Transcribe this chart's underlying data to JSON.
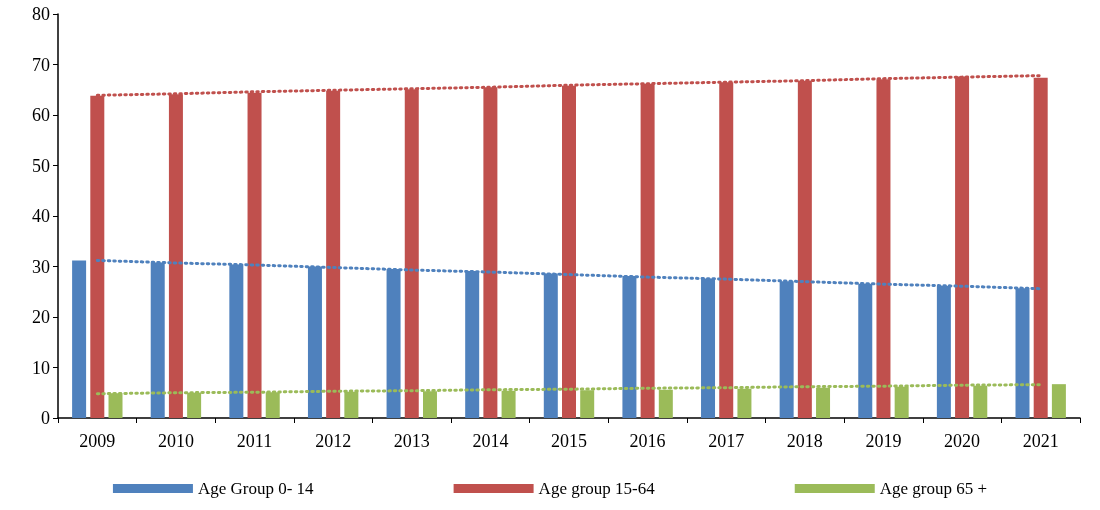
{
  "chart_data": {
    "type": "bar",
    "categories": [
      "2009",
      "2010",
      "2011",
      "2012",
      "2013",
      "2014",
      "2015",
      "2016",
      "2017",
      "2018",
      "2019",
      "2020",
      "2021"
    ],
    "series": [
      {
        "name": "Age Group 0- 14",
        "color": "#4f81bd",
        "values": [
          31.2,
          30.8,
          30.4,
          30.0,
          29.5,
          29.1,
          28.6,
          28.1,
          27.6,
          27.1,
          26.6,
          26.2,
          25.7
        ]
      },
      {
        "name": "Age group 15-64",
        "color": "#c0504d",
        "values": [
          63.8,
          64.1,
          64.4,
          64.8,
          65.1,
          65.5,
          65.8,
          66.2,
          66.5,
          66.8,
          67.1,
          67.6,
          67.4
        ]
      },
      {
        "name": "Age group 65 +",
        "color": "#9bbb59",
        "values": [
          4.9,
          5.0,
          5.1,
          5.2,
          5.3,
          5.4,
          5.5,
          5.6,
          5.8,
          6.0,
          6.2,
          6.4,
          6.7
        ]
      },
      {
        "type": "line",
        "color": "#4f81bd",
        "line_style": "dotted",
        "values": [
          31.2,
          30.7,
          30.3,
          29.8,
          29.3,
          28.9,
          28.4,
          27.9,
          27.5,
          27.0,
          26.5,
          26.1,
          25.6
        ]
      },
      {
        "type": "line",
        "color": "#c0504d",
        "line_style": "dotted",
        "values": [
          63.9,
          64.2,
          64.6,
          64.9,
          65.2,
          65.5,
          65.9,
          66.2,
          66.5,
          66.8,
          67.2,
          67.5,
          67.8
        ]
      },
      {
        "type": "line",
        "color": "#9bbb59",
        "line_style": "dotted",
        "values": [
          4.8,
          5.0,
          5.1,
          5.3,
          5.4,
          5.6,
          5.7,
          5.9,
          6.0,
          6.2,
          6.3,
          6.5,
          6.6
        ]
      }
    ],
    "ylim": [
      0,
      80
    ],
    "yticks": [
      0,
      10,
      20,
      30,
      40,
      50,
      60,
      70,
      80
    ],
    "grid": false,
    "legend": "bottom",
    "marker": "none"
  }
}
